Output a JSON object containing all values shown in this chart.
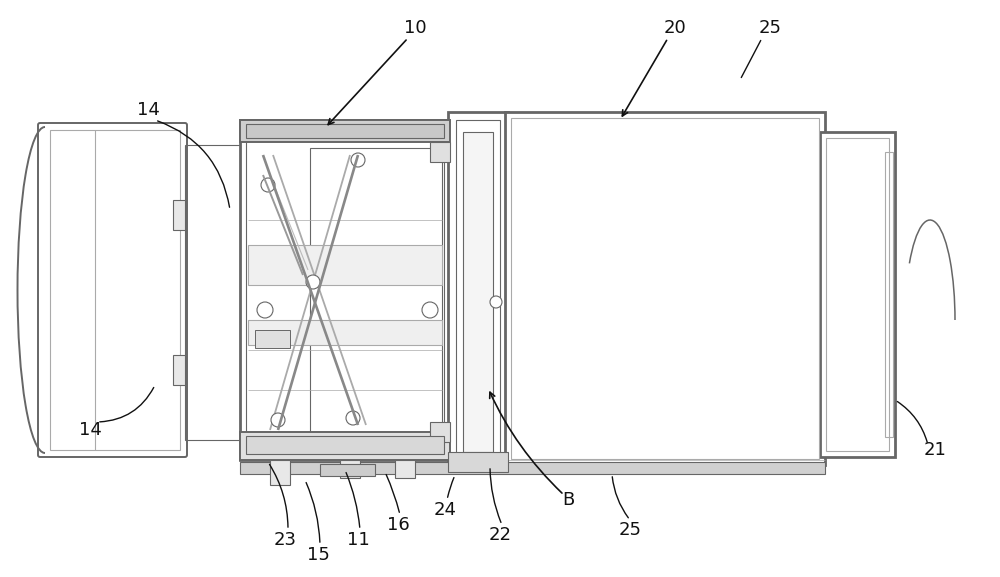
{
  "bg_color": "#ffffff",
  "lc": "#666666",
  "lcd": "#111111",
  "lcl": "#aaaaaa",
  "lc_gray": "#999999",
  "fig_width": 10.0,
  "fig_height": 5.77
}
